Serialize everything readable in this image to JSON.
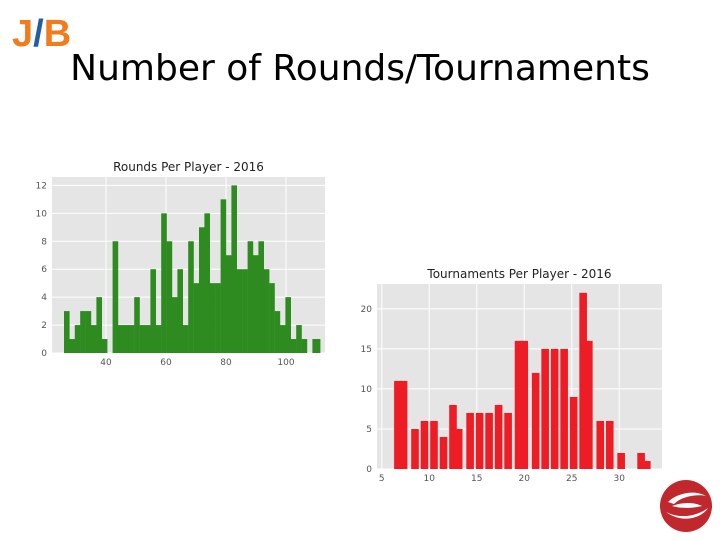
{
  "header": {
    "logo": {
      "j": "J",
      "slash": "/",
      "b": "B"
    },
    "title": "Number of Rounds/Tournaments"
  },
  "chart_data": [
    {
      "type": "bar",
      "title": "Rounds Per Player - 2016",
      "color": "#2e8b20",
      "background": "#e5e5e5",
      "grid": true,
      "bin_width": 1.8,
      "x": [
        26,
        27.8,
        29.6,
        31.4,
        33.2,
        35,
        36.8,
        38.6,
        40.4,
        42.2,
        44,
        45.8,
        47.6,
        49.4,
        51.2,
        53,
        54.8,
        56.6,
        58.4,
        60.2,
        62,
        63.8,
        65.6,
        67.4,
        69.2,
        71,
        72.8,
        74.6,
        76.4,
        78.2,
        80,
        81.8,
        83.6,
        85.4,
        87.2,
        89,
        90.8,
        92.6,
        94.4,
        96.2,
        98,
        99.8,
        101.6,
        103.4,
        105.2,
        107
      ],
      "values": [
        3,
        1,
        2,
        3,
        3,
        2,
        4,
        1,
        0,
        8,
        2,
        2,
        2,
        4,
        2,
        2,
        6,
        2,
        10,
        8,
        4,
        6,
        2,
        8,
        5,
        9,
        10,
        5,
        5,
        11,
        7,
        12,
        6,
        6,
        8,
        7,
        8,
        6,
        5,
        3,
        2,
        4,
        1,
        2,
        1,
        0
      ],
      "extra_bars": [
        {
          "x": 108.8,
          "value": 1
        },
        {
          "x": 109.6,
          "value": 1
        }
      ],
      "xlim": [
        22,
        113
      ],
      "ylim": [
        0,
        12.6
      ],
      "xticks": [
        40,
        60,
        80,
        100
      ],
      "yticks": [
        0,
        2,
        4,
        6,
        8,
        10,
        12
      ]
    },
    {
      "type": "bar",
      "title": "Tournaments Per Player - 2016",
      "color": "#ee1c25",
      "background": "#e5e5e5",
      "grid": true,
      "bin_width": 0.8,
      "x": [
        6.3,
        7.4,
        8.4,
        9.4,
        10.4,
        11.4,
        12.4,
        13.4,
        14.4,
        15.4,
        16.4,
        17.4,
        18.4,
        19.4,
        20.4,
        21.4,
        22.4,
        23.4,
        24.4,
        25.4,
        26.4,
        27.4,
        28.4,
        29.4,
        30.4,
        31.4,
        32.4
      ],
      "values": [
        11,
        0,
        5,
        6,
        6,
        4,
        8,
        5,
        7,
        7,
        7,
        8,
        7,
        16,
        0,
        12,
        15,
        15,
        15,
        9,
        22,
        16,
        6,
        6,
        2,
        0,
        2
      ],
      "series_values_full": [
        {
          "x": 6.3,
          "value": 11
        },
        {
          "x": 6.9,
          "value": 11
        },
        {
          "x": 8.1,
          "value": 5
        },
        {
          "x": 9.1,
          "value": 6
        },
        {
          "x": 10.1,
          "value": 6
        },
        {
          "x": 11.1,
          "value": 4
        },
        {
          "x": 12.1,
          "value": 8
        },
        {
          "x": 12.7,
          "value": 5
        },
        {
          "x": 13.9,
          "value": 7
        },
        {
          "x": 14.9,
          "value": 7
        },
        {
          "x": 15.9,
          "value": 7
        },
        {
          "x": 16.9,
          "value": 8
        },
        {
          "x": 17.9,
          "value": 7
        },
        {
          "x": 19.0,
          "value": 16
        },
        {
          "x": 19.6,
          "value": 16
        },
        {
          "x": 20.8,
          "value": 12
        },
        {
          "x": 21.8,
          "value": 15
        },
        {
          "x": 22.8,
          "value": 15
        },
        {
          "x": 23.8,
          "value": 15
        },
        {
          "x": 24.8,
          "value": 9
        },
        {
          "x": 25.8,
          "value": 22
        },
        {
          "x": 26.4,
          "value": 16
        },
        {
          "x": 27.6,
          "value": 6
        },
        {
          "x": 28.6,
          "value": 6
        },
        {
          "x": 29.8,
          "value": 2
        },
        {
          "x": 31.9,
          "value": 2
        },
        {
          "x": 32.5,
          "value": 1
        }
      ],
      "xlim": [
        4.5,
        34.5
      ],
      "ylim": [
        0,
        23.1
      ],
      "xticks": [
        5,
        10,
        15,
        20,
        25,
        30
      ],
      "yticks": [
        0,
        5,
        10,
        15,
        20
      ]
    }
  ]
}
